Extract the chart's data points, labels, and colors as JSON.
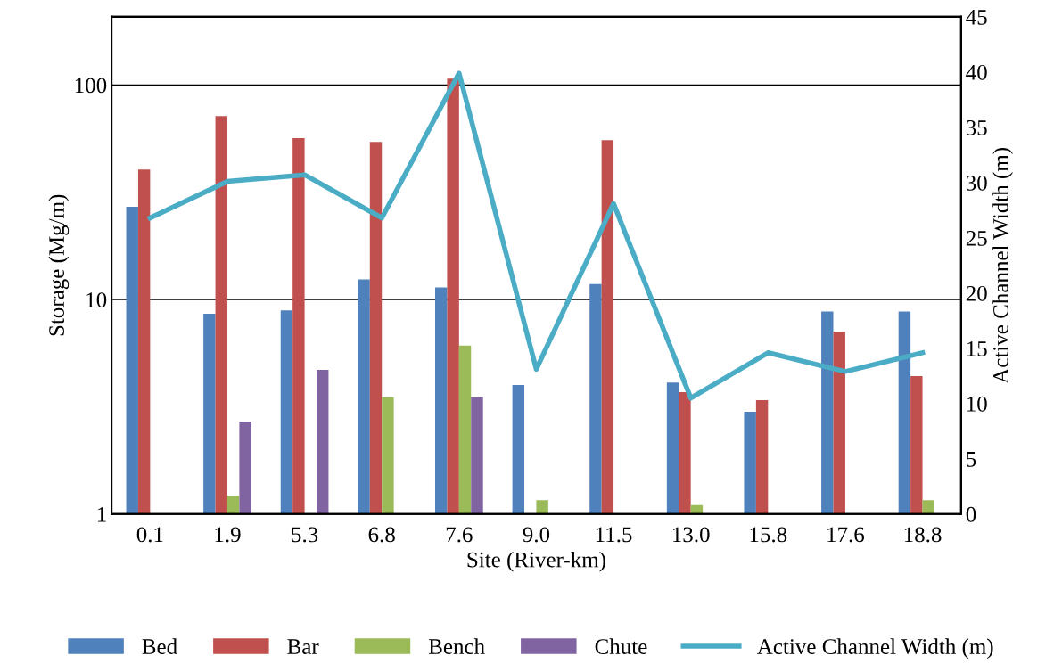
{
  "chart_data": {
    "type": "bar",
    "xlabel": "Site (River-km)",
    "ylabel": "Storage (Mg/m)",
    "y2label": "Active Channel Width (m)",
    "categories": [
      "0.1",
      "1.9",
      "5.3",
      "6.8",
      "7.6",
      "9.0",
      "11.5",
      "13.0",
      "15.8",
      "17.6",
      "18.8"
    ],
    "series": [
      {
        "name": "Bed",
        "color": "#4f81bd",
        "values": [
          27.1,
          8.6,
          8.9,
          12.4,
          11.4,
          4.0,
          11.8,
          4.1,
          3.0,
          8.8,
          8.8
        ]
      },
      {
        "name": "Bar",
        "color": "#c0504d",
        "values": [
          40.4,
          71.6,
          56.5,
          54.3,
          107,
          null,
          55.4,
          3.7,
          3.4,
          7.1,
          4.4
        ]
      },
      {
        "name": "Bench",
        "color": "#9bbb59",
        "values": [
          null,
          1.22,
          null,
          3.5,
          6.1,
          1.16,
          null,
          1.1,
          null,
          null,
          1.16
        ]
      },
      {
        "name": "Chute",
        "color": "#8064a2",
        "values": [
          null,
          2.7,
          4.7,
          null,
          3.5,
          null,
          null,
          null,
          null,
          null,
          null
        ]
      },
      {
        "name": "Active Channel Width (m)",
        "color": "#4bacc6",
        "type": "line",
        "axis": "y2",
        "values": [
          26.8,
          30.1,
          30.7,
          26.8,
          39.9,
          13.1,
          28.1,
          10.5,
          14.6,
          12.9,
          14.6
        ]
      }
    ],
    "log": "y",
    "ylim": [
      1,
      208
    ],
    "yticks": [
      1,
      10,
      100
    ],
    "y2lim": [
      0,
      45
    ],
    "y2ticks": [
      0,
      5,
      10,
      15,
      20,
      25,
      30,
      35,
      40,
      45
    ],
    "grid": "y",
    "legend": "bottom",
    "marker": "none",
    "line_style": "solid"
  }
}
